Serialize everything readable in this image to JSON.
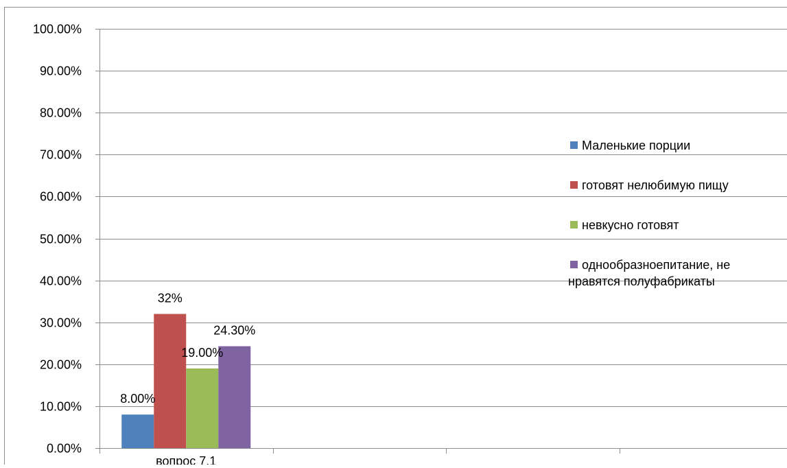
{
  "chart_data": {
    "type": "bar",
    "categories": [
      "вопрос 7.1"
    ],
    "series": [
      {
        "name": "Маленькие порции",
        "values": [
          0.08
        ],
        "label": "8.00%",
        "color": "#4F81BD"
      },
      {
        "name": "готовят нелюбимую пищу",
        "values": [
          0.32
        ],
        "label": "32%",
        "color": "#C0504D"
      },
      {
        "name": "невкусно готовят",
        "values": [
          0.19
        ],
        "label": "19.00%",
        "color": "#9BBB59"
      },
      {
        "name": [
          "однообразноепитание, не",
          "нравятся полуфабрикаты"
        ],
        "values": [
          0.243
        ],
        "label": "24.30%",
        "color": "#8064A2"
      }
    ],
    "yticks": [
      "0.00%",
      "10.00%",
      "20.00%",
      "30.00%",
      "40.00%",
      "50.00%",
      "60.00%",
      "70.00%",
      "80.00%",
      "90.00%",
      "100.00%"
    ],
    "ylim": [
      0,
      1
    ],
    "x_category_slots": 4,
    "grid": true,
    "legend_position": "right"
  }
}
